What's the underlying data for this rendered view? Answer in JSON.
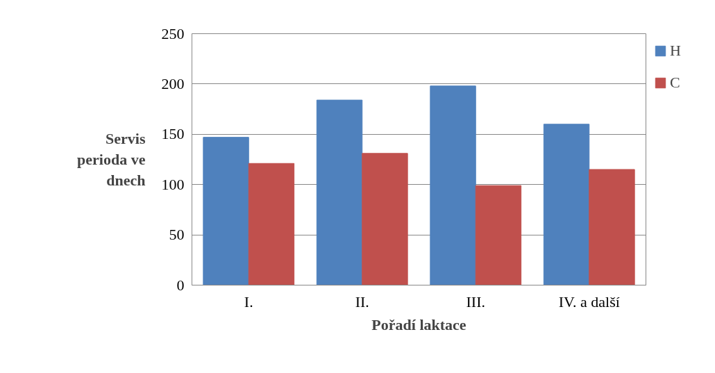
{
  "chart_data": {
    "type": "bar",
    "xlabel": "Pořadí laktace",
    "ylabel": "Servis perioda ve dnech",
    "categories": [
      "I.",
      "II.",
      "III.",
      "IV. a další"
    ],
    "series": [
      {
        "name": "H",
        "color": "#4f81bd",
        "values": [
          147,
          184,
          198,
          160
        ]
      },
      {
        "name": "C",
        "color": "#c0504d",
        "values": [
          121,
          131,
          99,
          115
        ]
      }
    ],
    "ylim": [
      0,
      250
    ],
    "yticks": [
      0,
      50,
      100,
      150,
      200,
      250
    ],
    "grid": "y",
    "legend": "right"
  }
}
